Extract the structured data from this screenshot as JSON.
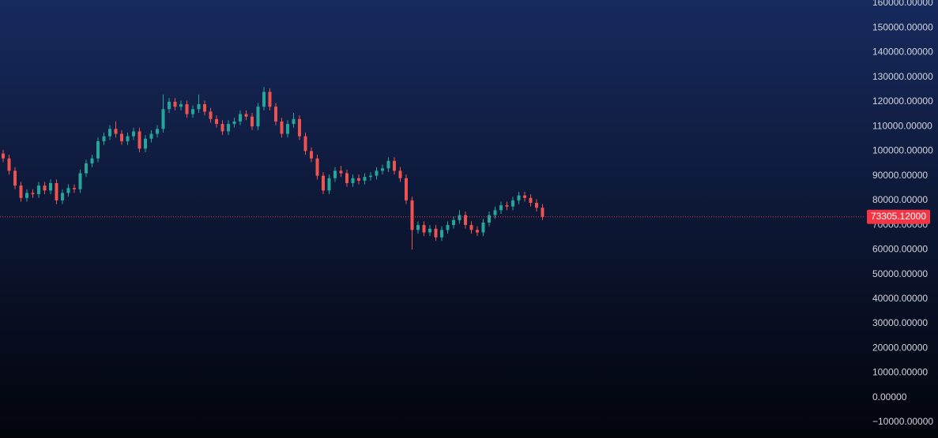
{
  "chart_data": {
    "type": "candlestick",
    "up_color": "#26a69a",
    "down_color": "#ef5350",
    "open": [
      99000,
      97000,
      92000,
      86000,
      81000,
      83000,
      82500,
      86000,
      84000,
      87000,
      80000,
      83000,
      85000,
      84500,
      91000,
      95000,
      97000,
      104000,
      106000,
      109000,
      107000,
      104000,
      106000,
      108000,
      101000,
      105000,
      107000,
      109000,
      117000,
      120000,
      118000,
      119000,
      115000,
      117000,
      119000,
      116000,
      113000,
      111000,
      108000,
      111000,
      112000,
      115000,
      114000,
      110000,
      118000,
      124000,
      118000,
      112000,
      107000,
      111000,
      113000,
      106000,
      100000,
      97000,
      90000,
      84000,
      89000,
      92000,
      91000,
      87000,
      89000,
      88000,
      89500,
      90000,
      92000,
      93000,
      96000,
      92000,
      89000,
      80000,
      68000,
      70000,
      67000,
      68500,
      65000,
      68000,
      70000,
      72000,
      74000,
      70000,
      68000,
      67000,
      71000,
      74000,
      76000,
      78000,
      77500,
      80000,
      82000,
      81000,
      79000,
      77000
    ],
    "high": [
      100500,
      98500,
      93500,
      87500,
      84500,
      84500,
      87500,
      87500,
      88500,
      88500,
      84500,
      86500,
      86500,
      92500,
      96500,
      98500,
      105500,
      107500,
      110500,
      112000,
      108500,
      107500,
      109500,
      109500,
      106500,
      108500,
      110500,
      123000,
      121500,
      121500,
      120500,
      120500,
      118500,
      123000,
      120500,
      117500,
      114500,
      112500,
      112500,
      113500,
      116500,
      116500,
      115500,
      119500,
      126000,
      125500,
      119500,
      113500,
      112500,
      115500,
      114500,
      107500,
      101500,
      98500,
      91500,
      90500,
      93500,
      94000,
      92500,
      90500,
      90500,
      91000,
      91500,
      93500,
      94500,
      97500,
      97500,
      93500,
      90500,
      81500,
      71500,
      71500,
      70000,
      70000,
      69500,
      71500,
      73500,
      76000,
      75500,
      71500,
      69500,
      72500,
      75500,
      77500,
      79500,
      79500,
      81500,
      83500,
      83500,
      82500,
      80500,
      78500
    ],
    "low": [
      95500,
      90500,
      84500,
      79500,
      79500,
      81000,
      81000,
      82500,
      82500,
      78500,
      78500,
      81500,
      83000,
      83000,
      89500,
      93500,
      95500,
      102500,
      104500,
      105500,
      102500,
      102500,
      104500,
      99500,
      99500,
      103500,
      105500,
      107500,
      115500,
      116500,
      116500,
      113500,
      113500,
      115500,
      114500,
      111500,
      109500,
      106500,
      106500,
      109500,
      110500,
      112500,
      108500,
      108500,
      116500,
      116500,
      110500,
      105500,
      105500,
      109500,
      104500,
      98500,
      95500,
      88500,
      82500,
      82500,
      87500,
      89500,
      85500,
      85500,
      86500,
      86500,
      88000,
      88500,
      90500,
      91500,
      90500,
      87500,
      78500,
      60000,
      66500,
      65500,
      65500,
      63500,
      63500,
      66500,
      68500,
      70500,
      68500,
      66500,
      65500,
      65500,
      69500,
      72500,
      74500,
      76000,
      76000,
      78500,
      79500,
      77500,
      75500,
      72000
    ],
    "close": [
      97000,
      92000,
      86000,
      81000,
      83000,
      82500,
      86000,
      84000,
      87000,
      80000,
      83000,
      85000,
      84500,
      91000,
      95000,
      97000,
      104000,
      106000,
      109000,
      107000,
      104000,
      106000,
      108000,
      101000,
      105000,
      107000,
      109000,
      117000,
      120000,
      118000,
      119000,
      115000,
      117000,
      119000,
      116000,
      113000,
      111000,
      108000,
      111000,
      112000,
      115000,
      114000,
      110000,
      118000,
      124000,
      118000,
      112000,
      107000,
      111000,
      113000,
      106000,
      100000,
      97000,
      90000,
      84000,
      89000,
      92000,
      91000,
      87000,
      89000,
      88000,
      89500,
      90000,
      92000,
      93000,
      96000,
      92000,
      89000,
      80000,
      68000,
      70000,
      67000,
      68500,
      65000,
      68000,
      70000,
      72000,
      74000,
      70000,
      68000,
      67000,
      71000,
      74000,
      76000,
      78000,
      77500,
      80000,
      82000,
      81000,
      79000,
      77000,
      73305.12
    ],
    "ylim": [
      -10000,
      160000
    ],
    "yticks": [
      {
        "value": 160000,
        "label": "160000.00000"
      },
      {
        "value": 150000,
        "label": "150000.00000"
      },
      {
        "value": 140000,
        "label": "140000.00000"
      },
      {
        "value": 130000,
        "label": "130000.00000"
      },
      {
        "value": 120000,
        "label": "120000.00000"
      },
      {
        "value": 110000,
        "label": "110000.00000"
      },
      {
        "value": 100000,
        "label": "100000.00000"
      },
      {
        "value": 90000,
        "label": "90000.00000"
      },
      {
        "value": 80000,
        "label": "80000.00000"
      },
      {
        "value": 70000,
        "label": "70000.00000"
      },
      {
        "value": 60000,
        "label": "60000.00000"
      },
      {
        "value": 50000,
        "label": "50000.00000"
      },
      {
        "value": 40000,
        "label": "40000.00000"
      },
      {
        "value": 30000,
        "label": "30000.00000"
      },
      {
        "value": 20000,
        "label": "20000.00000"
      },
      {
        "value": 10000,
        "label": "10000.00000"
      },
      {
        "value": 0,
        "label": "0.00000"
      },
      {
        "value": -10000,
        "label": "−10000.00000"
      }
    ],
    "last_price": {
      "value": 73305.12,
      "label": "73305.12000",
      "color": "#f23645"
    }
  }
}
